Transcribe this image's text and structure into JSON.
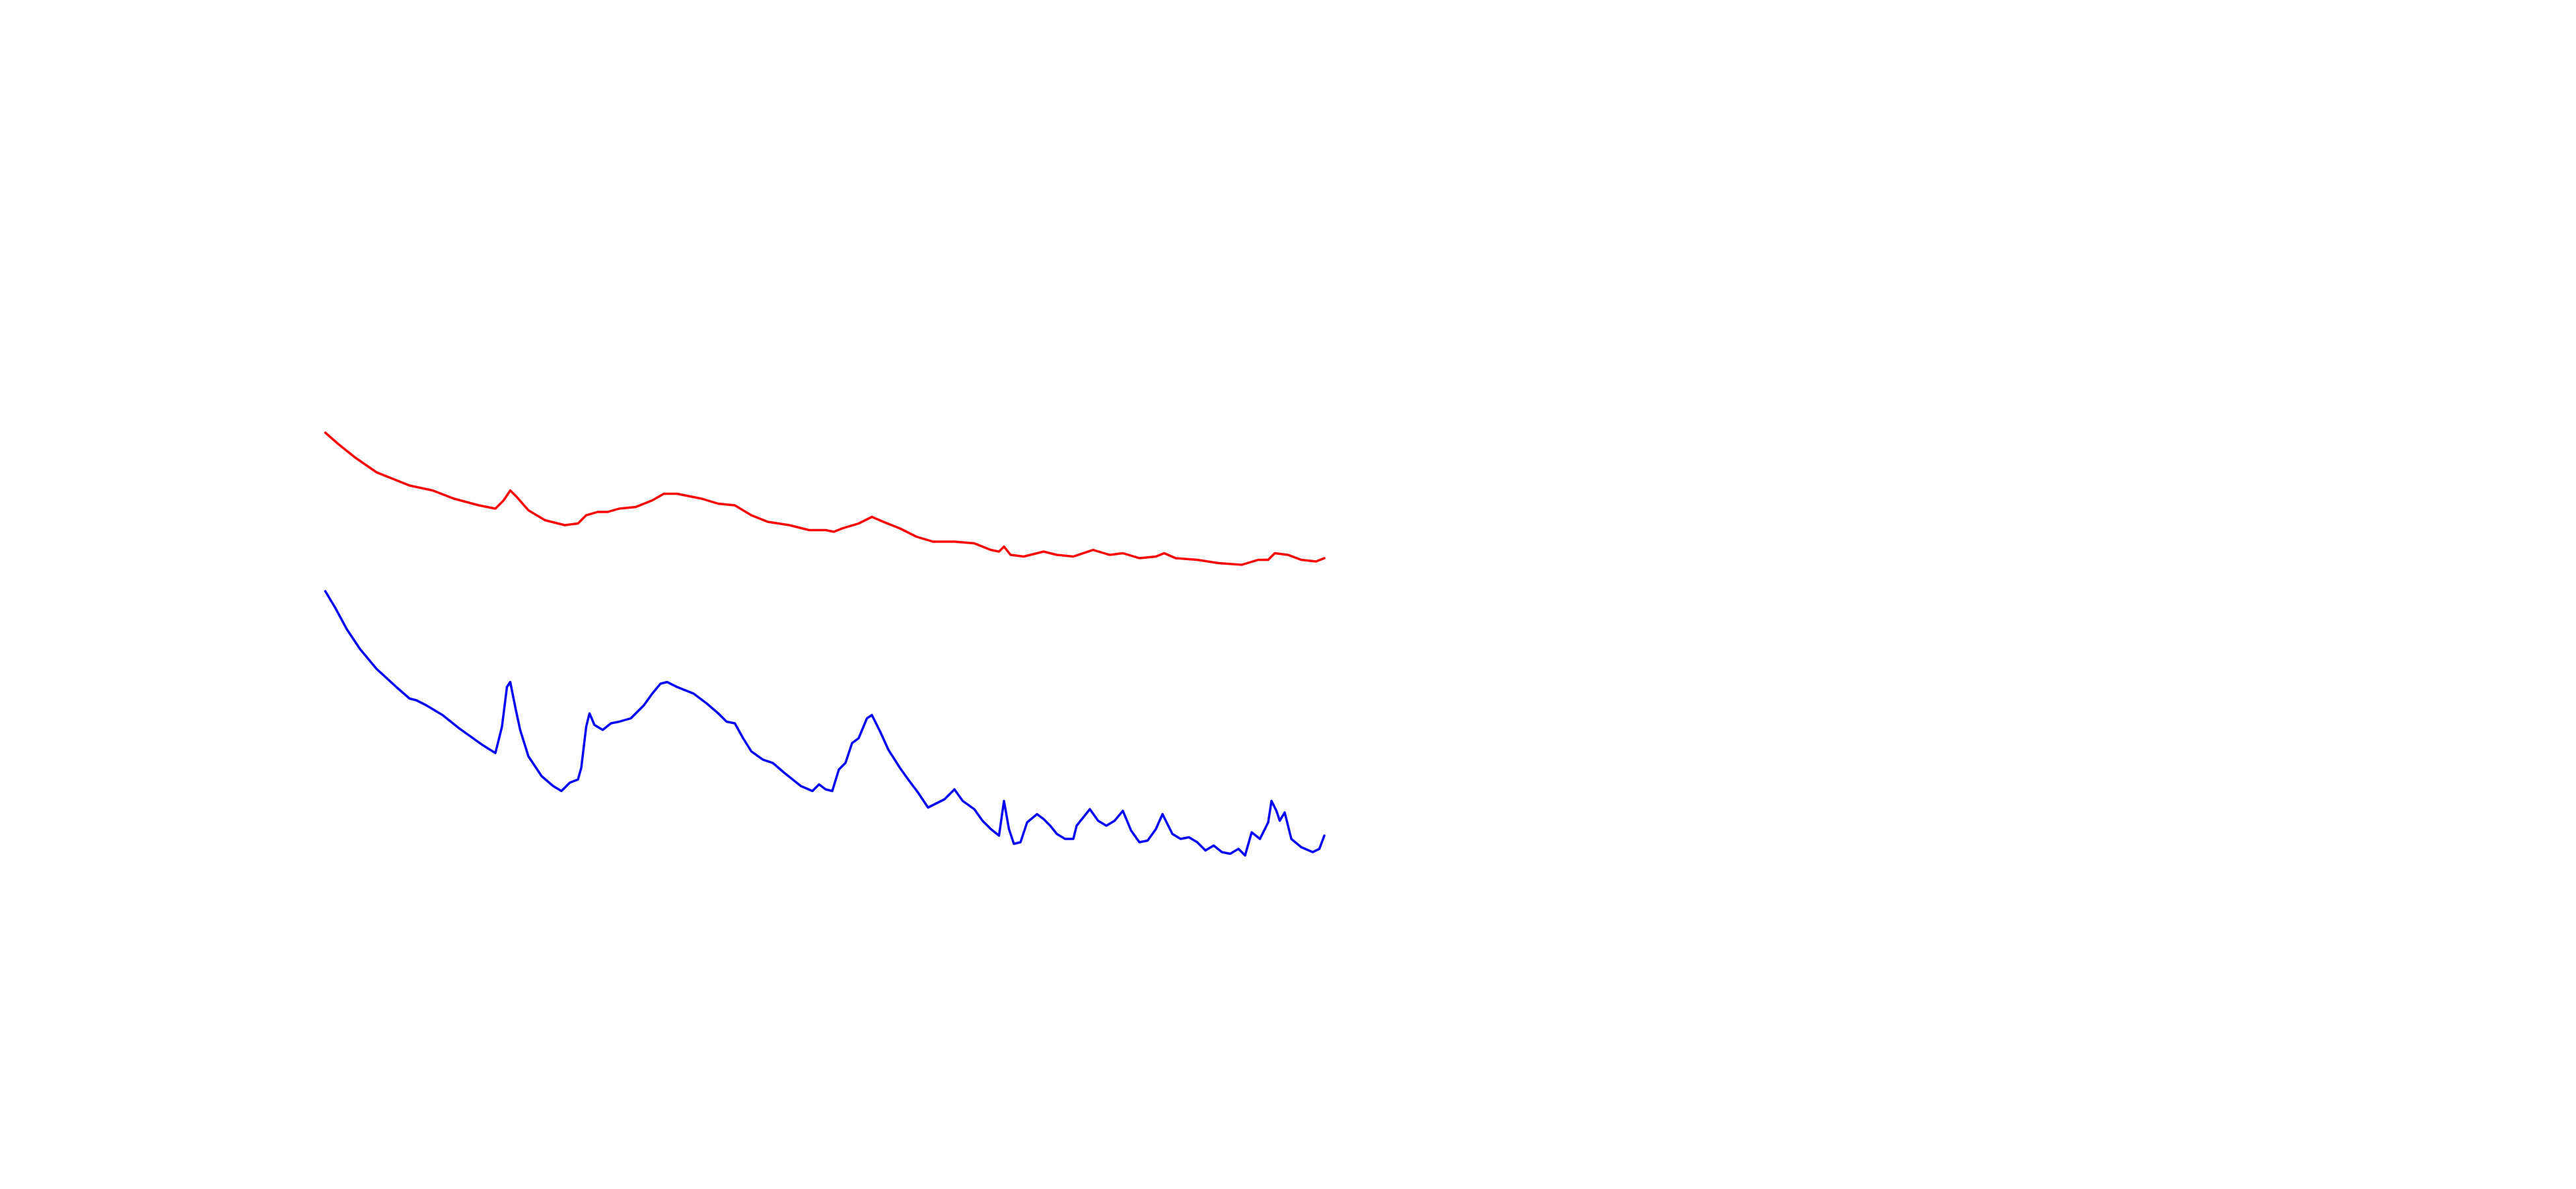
{
  "chart_data": {
    "type": "line",
    "xlim": [
      0,
      1560
    ],
    "ylim": [
      0,
      720
    ],
    "series": [
      {
        "color": "#ff0000",
        "x": [
          197,
          205,
          215,
          228,
          248,
          262,
          275,
          290,
          300,
          305,
          309,
          313,
          320,
          330,
          342,
          350,
          355,
          362,
          368,
          375,
          385,
          395,
          402,
          410,
          425,
          435,
          445,
          455,
          465,
          478,
          490,
          500,
          505,
          510,
          520,
          528,
          535,
          545,
          555,
          565,
          578,
          590,
          600,
          605,
          608,
          612,
          620,
          632,
          640,
          650,
          662,
          672,
          680,
          690,
          700,
          705,
          712,
          725,
          738,
          752,
          762,
          768,
          772,
          780,
          788,
          797,
          802
        ],
        "values": [
          458,
          451,
          443,
          434,
          426,
          423,
          418,
          414,
          412,
          417,
          423,
          419,
          411,
          405,
          402,
          403,
          408,
          410,
          410,
          412,
          413,
          417,
          421,
          421,
          418,
          415,
          414,
          408,
          404,
          402,
          399,
          399,
          398,
          400,
          403,
          407,
          404,
          400,
          395,
          392,
          392,
          391,
          387,
          386,
          389,
          384,
          383,
          386,
          384,
          383,
          387,
          384,
          385,
          382,
          383,
          385,
          382,
          381,
          379,
          378,
          381,
          381,
          385,
          384,
          381,
          380,
          382
        ]
      },
      {
        "color": "#0000ff",
        "x": [
          197,
          203,
          210,
          218,
          228,
          240,
          248,
          252,
          258,
          268,
          278,
          285,
          292,
          300,
          304,
          307,
          309,
          312,
          315,
          320,
          328,
          335,
          340,
          345,
          350,
          352,
          355,
          357,
          360,
          365,
          370,
          375,
          382,
          390,
          395,
          400,
          404,
          410,
          420,
          428,
          435,
          440,
          445,
          450,
          455,
          462,
          468,
          475,
          480,
          485,
          492,
          496,
          500,
          504,
          508,
          512,
          516,
          520,
          525,
          528,
          533,
          538,
          545,
          550,
          556,
          562,
          568,
          572,
          578,
          583,
          590,
          595,
          600,
          605,
          608,
          611,
          614,
          618,
          622,
          628,
          632,
          636,
          640,
          645,
          650,
          652,
          656,
          660,
          665,
          670,
          675,
          680,
          685,
          690,
          695,
          700,
          704,
          710,
          715,
          720,
          725,
          730,
          735,
          740,
          745,
          750,
          754,
          758,
          763,
          768,
          770,
          773,
          775,
          778,
          782,
          788,
          795,
          799,
          802
        ],
        "values": [
          362,
          352,
          339,
          327,
          315,
          304,
          297,
          296,
          293,
          287,
          279,
          274,
          269,
          264,
          280,
          304,
          307,
          292,
          278,
          262,
          250,
          244,
          241,
          246,
          248,
          255,
          280,
          288,
          281,
          278,
          282,
          283,
          285,
          293,
          300,
          306,
          307,
          304,
          300,
          294,
          288,
          283,
          282,
          273,
          265,
          260,
          258,
          252,
          248,
          244,
          241,
          245,
          242,
          241,
          254,
          258,
          270,
          273,
          285,
          287,
          277,
          266,
          255,
          248,
          240,
          231,
          234,
          236,
          242,
          235,
          230,
          223,
          218,
          214,
          235,
          218,
          209,
          210,
          222,
          227,
          224,
          220,
          215,
          212,
          212,
          220,
          225,
          230,
          223,
          220,
          223,
          229,
          217,
          210,
          211,
          218,
          227,
          215,
          212,
          213,
          210,
          205,
          208,
          204,
          203,
          206,
          202,
          216,
          212,
          222,
          235,
          229,
          223,
          228,
          212,
          207,
          204,
          206,
          214
        ]
      }
    ]
  }
}
